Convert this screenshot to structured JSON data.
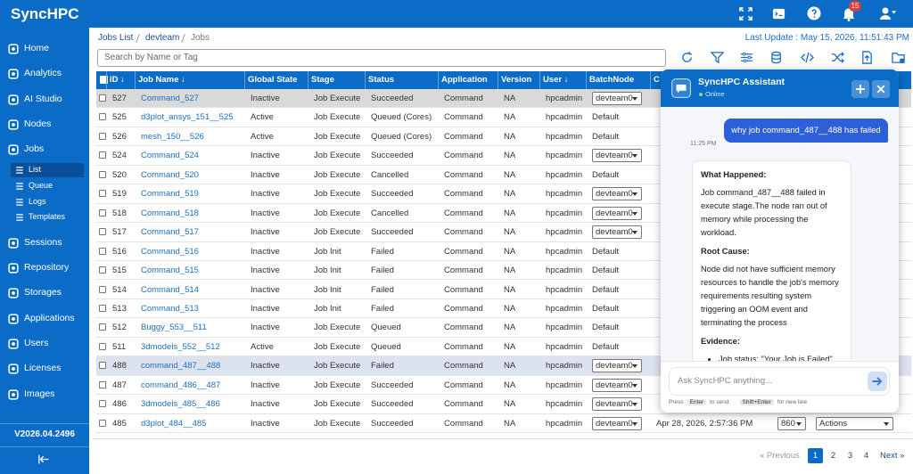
{
  "top_bar": {
    "brand": "SyncHPC",
    "notification_count": "15"
  },
  "sidebar": {
    "items": [
      "Home",
      "Analytics",
      "AI Studio",
      "Nodes",
      "Jobs",
      "Sessions",
      "Repository",
      "Storages",
      "Applications",
      "Users",
      "Licenses",
      "Images"
    ],
    "jobs_submenu": [
      "List",
      "Queue",
      "Logs",
      "Templates"
    ],
    "version": "V2026.04.2496"
  },
  "breadcrumb": [
    "Jobs List",
    "devteam",
    "Jobs"
  ],
  "last_update": "Last Update : May 15, 2026, 11:51:43 PM",
  "search_placeholder": "Search by Name or Tag",
  "table": {
    "columns": [
      "ID ↓",
      "Job Name ↓",
      "Global State",
      "Stage",
      "Status",
      "Application",
      "Version",
      "User ↓",
      "BatchNode",
      "C"
    ],
    "rows": [
      {
        "cells": [
          527,
          "Command_527",
          "Inactive",
          "Job Execute",
          "Succeeded",
          "Command",
          "NA",
          "hpcadmin",
          "devteam0"
        ],
        "dropdown": true,
        "highlight": "selected"
      },
      {
        "cells": [
          525,
          "d3plot_ansys_151__525",
          "Active",
          "Job Execute",
          "Queued (Cores)",
          "Command",
          "NA",
          "hpcadmin",
          "Default"
        ],
        "dropdown": false
      },
      {
        "cells": [
          526,
          "mesh_150__526",
          "Active",
          "Job Execute",
          "Queued (Cores)",
          "Command",
          "NA",
          "hpcadmin",
          "Default"
        ],
        "dropdown": false
      },
      {
        "cells": [
          524,
          "Command_524",
          "Inactive",
          "Job Execute",
          "Succeeded",
          "Command",
          "NA",
          "hpcadmin",
          "devteam0"
        ],
        "dropdown": true
      },
      {
        "cells": [
          520,
          "Command_520",
          "Inactive",
          "Job Execute",
          "Cancelled",
          "Command",
          "NA",
          "hpcadmin",
          "Default"
        ],
        "dropdown": false
      },
      {
        "cells": [
          519,
          "Command_519",
          "Inactive",
          "Job Execute",
          "Succeeded",
          "Command",
          "NA",
          "hpcadmin",
          "devteam0"
        ],
        "dropdown": true
      },
      {
        "cells": [
          518,
          "Command_518",
          "Inactive",
          "Job Execute",
          "Cancelled",
          "Command",
          "NA",
          "hpcadmin",
          "devteam0"
        ],
        "dropdown": true
      },
      {
        "cells": [
          517,
          "Command_517",
          "Inactive",
          "Job Execute",
          "Succeeded",
          "Command",
          "NA",
          "hpcadmin",
          "devteam0"
        ],
        "dropdown": true
      },
      {
        "cells": [
          516,
          "Command_516",
          "Inactive",
          "Job Init",
          "Failed",
          "Command",
          "NA",
          "hpcadmin",
          "Default"
        ],
        "dropdown": false
      },
      {
        "cells": [
          515,
          "Command_515",
          "Inactive",
          "Job Init",
          "Failed",
          "Command",
          "NA",
          "hpcadmin",
          "Default"
        ],
        "dropdown": false
      },
      {
        "cells": [
          514,
          "Command_514",
          "Inactive",
          "Job Init",
          "Failed",
          "Command",
          "NA",
          "hpcadmin",
          "Default"
        ],
        "dropdown": false
      },
      {
        "cells": [
          513,
          "Command_513",
          "Inactive",
          "Job Init",
          "Failed",
          "Command",
          "NA",
          "hpcadmin",
          "Default"
        ],
        "dropdown": false
      },
      {
        "cells": [
          512,
          "Buggy_553__511",
          "Inactive",
          "Job Execute",
          "Queued",
          "Command",
          "NA",
          "hpcadmin",
          "Default"
        ],
        "dropdown": false
      },
      {
        "cells": [
          511,
          "3dmodels_552__512",
          "Active",
          "Job Execute",
          "Queued",
          "Command",
          "NA",
          "hpcadmin",
          "Default"
        ],
        "dropdown": false
      },
      {
        "cells": [
          488,
          "command_487__488",
          "Inactive",
          "Job Execute",
          "Failed",
          "Command",
          "NA",
          "hpcadmin",
          "devteam0"
        ],
        "dropdown": true,
        "highlight": "focused"
      },
      {
        "cells": [
          487,
          "command_486__487",
          "Inactive",
          "Job Execute",
          "Succeeded",
          "Command",
          "NA",
          "hpcadmin",
          "devteam0"
        ],
        "dropdown": true
      },
      {
        "cells": [
          486,
          "3dmodels_485__486",
          "Inactive",
          "Job Execute",
          "Succeeded",
          "Command",
          "NA",
          "hpcadmin",
          "devteam0"
        ],
        "dropdown": true
      },
      {
        "cells": [
          485,
          "d3plot_484__485",
          "Inactive",
          "Job Execute",
          "Succeeded",
          "Command",
          "NA",
          "hpcadmin",
          "devteam0"
        ],
        "dropdown": true,
        "extra": [
          "Apr 28, 2026, 2:57:36 PM",
          "860",
          "Actions"
        ]
      }
    ]
  },
  "pagination": {
    "previous": "« Previous",
    "pages": [
      "1",
      "2",
      "3",
      "4"
    ],
    "current": 0,
    "next": "Next »"
  },
  "chat": {
    "title": "SyncHPC Assistant",
    "status": "Online",
    "user_message": "why job command_487__488 has failed",
    "time": "11:25 PM",
    "reply": [
      {
        "heading": "What Happened:",
        "text": "Job command_487__488 failed in execute stage.The node ran out of memory while processing the workload."
      },
      {
        "heading": "Root Cause:",
        "text": "Node did not have sufficient memory resources to handle the job's memory requirements resulting system triggering an OOM event and terminating the process"
      },
      {
        "heading": "Evidence:",
        "bullets": [
          "Job status: \"Your Job is Failed\""
        ]
      }
    ],
    "input_placeholder": "Ask SyncHPC anything...",
    "hint": [
      "Press",
      "Enter",
      "to send",
      "Shift+Enter",
      "for new line"
    ]
  }
}
